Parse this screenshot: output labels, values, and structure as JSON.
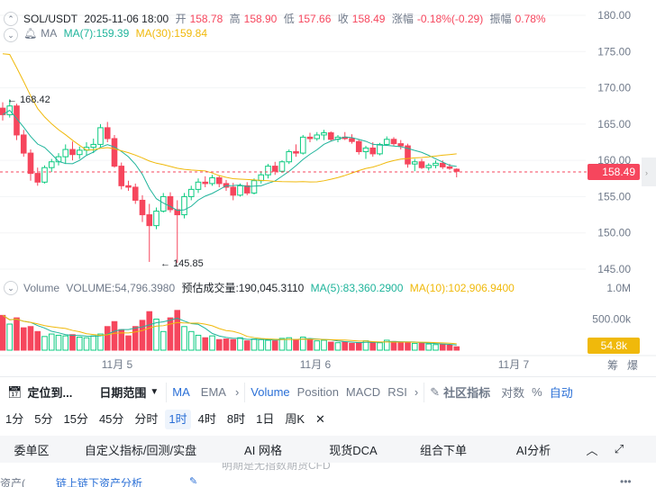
{
  "pair": "SOL/USDT",
  "datetime": "2025-11-06 18:00",
  "ohlc": [
    {
      "label": "开",
      "value": "158.78"
    },
    {
      "label": "高",
      "value": "158.90"
    },
    {
      "label": "低",
      "value": "157.66"
    },
    {
      "label": "收",
      "value": "158.49"
    }
  ],
  "change_label": "涨幅",
  "change_value": "-0.18%(-0.29)",
  "amp_label": "振幅",
  "amp_value": "0.78%",
  "ma_label": "MA",
  "ma7": "MA(7):159.39",
  "ma30": "MA(30):159.84",
  "vol_label": "Volume",
  "vol_value": "VOLUME:54,796.3980",
  "vol_est": "预估成交量:190,045.3110",
  "vol_ma5": "MA(5):83,360.2900",
  "vol_ma10": "MA(10):102,906.9400",
  "price_axis": [
    "180.00",
    "175.00",
    "170.00",
    "165.00",
    "160.00",
    "155.00",
    "150.00",
    "145.00"
  ],
  "vol_axis": [
    "1.0M",
    "500.00k"
  ],
  "current_price": "158.49",
  "current_vol": "54.8k",
  "high_marker": "168.42",
  "low_marker": "145.85",
  "dates": [
    "11月 5",
    "11月 6",
    "11月 7"
  ],
  "corner": [
    "筹",
    "爆"
  ],
  "toolbar": {
    "locate": "定位到...",
    "range": "日期范围",
    "indicators": [
      "MA",
      "EMA",
      "Volume",
      "Position",
      "MACD",
      "RSI"
    ],
    "community": "社区指标",
    "log": "对数",
    "pct": "%",
    "auto": "自动"
  },
  "intervals": [
    "1分",
    "5分",
    "15分",
    "45分",
    "分时",
    "1时",
    "4时",
    "8时",
    "1日",
    "周K"
  ],
  "active_interval": "1时",
  "tabs": [
    "委单区",
    "自定义指标/回测/实盘",
    "AI 网格",
    "现货DCA",
    "组合下单",
    "AI分析"
  ],
  "footer": {
    "left": "资产(",
    "link": "链上链下资产分析",
    "faded": "明期是无指数期货CFD"
  },
  "colors": {
    "up": "#0ecb81",
    "down": "#f6465d",
    "ma7": "#1fb49b",
    "ma30": "#f0b90b",
    "accent": "#2a6fd6"
  },
  "chart_data": {
    "type": "candlestick",
    "interval": "1h",
    "ylim": [
      143,
      182
    ],
    "candles": [
      [
        167.2,
        168.0,
        165.5,
        166.3
      ],
      [
        166.3,
        168.42,
        165.9,
        167.5
      ],
      [
        167.5,
        167.8,
        162.8,
        163.5
      ],
      [
        163.5,
        164.2,
        160.5,
        161.0
      ],
      [
        161.0,
        161.5,
        157.2,
        158.2
      ],
      [
        158.2,
        159.0,
        156.5,
        157.0
      ],
      [
        157.0,
        159.3,
        156.8,
        159.0
      ],
      [
        159.0,
        160.2,
        158.4,
        159.8
      ],
      [
        159.8,
        161.0,
        159.3,
        160.5
      ],
      [
        160.5,
        162.2,
        159.5,
        161.5
      ],
      [
        161.5,
        162.6,
        160.0,
        160.8
      ],
      [
        160.8,
        161.9,
        160.2,
        161.4
      ],
      [
        161.4,
        162.5,
        160.7,
        161.8
      ],
      [
        161.8,
        163.0,
        161.0,
        162.2
      ],
      [
        162.2,
        165.0,
        161.8,
        164.5
      ],
      [
        164.5,
        165.3,
        162.5,
        163.0
      ],
      [
        163.0,
        163.5,
        159.0,
        159.2
      ],
      [
        159.2,
        159.7,
        156.0,
        156.5
      ],
      [
        156.5,
        157.2,
        155.8,
        156.3
      ],
      [
        156.3,
        156.8,
        154.0,
        154.5
      ],
      [
        154.5,
        155.2,
        151.5,
        152.5
      ],
      [
        152.5,
        154.0,
        146.0,
        151.0
      ],
      [
        151.0,
        153.5,
        150.5,
        153.0
      ],
      [
        153.0,
        155.5,
        152.8,
        155.0
      ],
      [
        155.0,
        155.6,
        152.8,
        153.2
      ],
      [
        153.2,
        154.5,
        145.85,
        152.5
      ],
      [
        152.5,
        155.5,
        152.0,
        155.0
      ],
      [
        155.0,
        156.5,
        154.5,
        156.0
      ],
      [
        156.0,
        157.5,
        155.5,
        157.0
      ],
      [
        157.0,
        157.8,
        156.3,
        156.8
      ],
      [
        156.8,
        158.0,
        156.5,
        157.6
      ],
      [
        157.6,
        157.9,
        156.3,
        156.8
      ],
      [
        156.8,
        157.3,
        155.8,
        156.3
      ],
      [
        156.3,
        156.9,
        154.5,
        155.2
      ],
      [
        155.2,
        156.8,
        155.0,
        156.5
      ],
      [
        156.5,
        157.0,
        155.2,
        155.5
      ],
      [
        155.5,
        157.5,
        155.3,
        157.2
      ],
      [
        157.2,
        158.5,
        156.8,
        158.0
      ],
      [
        158.0,
        159.5,
        157.5,
        159.2
      ],
      [
        159.2,
        159.8,
        158.0,
        158.5
      ],
      [
        158.5,
        160.0,
        158.3,
        159.8
      ],
      [
        159.8,
        161.5,
        159.5,
        161.2
      ],
      [
        161.2,
        162.2,
        160.5,
        161.0
      ],
      [
        161.0,
        163.5,
        160.8,
        163.2
      ],
      [
        163.2,
        163.8,
        162.5,
        163.0
      ],
      [
        163.0,
        163.9,
        162.7,
        163.5
      ],
      [
        163.5,
        164.2,
        162.8,
        163.8
      ],
      [
        163.8,
        164.0,
        162.6,
        162.9
      ],
      [
        162.9,
        163.5,
        162.5,
        163.2
      ],
      [
        163.2,
        163.9,
        162.8,
        163.0
      ],
      [
        163.0,
        163.6,
        162.3,
        162.6
      ],
      [
        162.6,
        162.9,
        160.8,
        161.2
      ],
      [
        161.2,
        162.0,
        160.2,
        161.7
      ],
      [
        161.7,
        162.5,
        160.5,
        160.9
      ],
      [
        160.9,
        162.4,
        160.7,
        162.2
      ],
      [
        162.2,
        163.3,
        162.0,
        162.9
      ],
      [
        162.9,
        163.2,
        162.0,
        162.3
      ],
      [
        162.3,
        162.8,
        161.5,
        162.0
      ],
      [
        162.0,
        162.3,
        159.0,
        159.5
      ],
      [
        159.5,
        160.2,
        158.5,
        159.8
      ],
      [
        159.8,
        160.2,
        158.8,
        159.0
      ],
      [
        159.0,
        159.6,
        158.6,
        159.3
      ],
      [
        159.3,
        160.0,
        158.9,
        159.6
      ],
      [
        159.6,
        160.0,
        158.8,
        159.1
      ],
      [
        159.1,
        159.5,
        158.7,
        158.9
      ],
      [
        158.78,
        158.9,
        157.66,
        158.49
      ]
    ],
    "volume_ylim": [
      0,
      1100000
    ],
    "volume": [
      560000,
      420000,
      520000,
      360000,
      380000,
      300000,
      220000,
      260000,
      240000,
      230000,
      250000,
      210000,
      200000,
      230000,
      260000,
      380000,
      460000,
      330000,
      230000,
      380000,
      480000,
      620000,
      500000,
      300000,
      520000,
      640000,
      380000,
      300000,
      240000,
      200000,
      230000,
      170000,
      180000,
      170000,
      200000,
      150000,
      180000,
      170000,
      160000,
      150000,
      190000,
      200000,
      160000,
      210000,
      180000,
      150000,
      160000,
      130000,
      120000,
      130000,
      110000,
      120000,
      150000,
      130000,
      120000,
      160000,
      140000,
      130000,
      120000,
      110000,
      110000,
      100000,
      90000,
      90000,
      80000,
      54796
    ]
  }
}
